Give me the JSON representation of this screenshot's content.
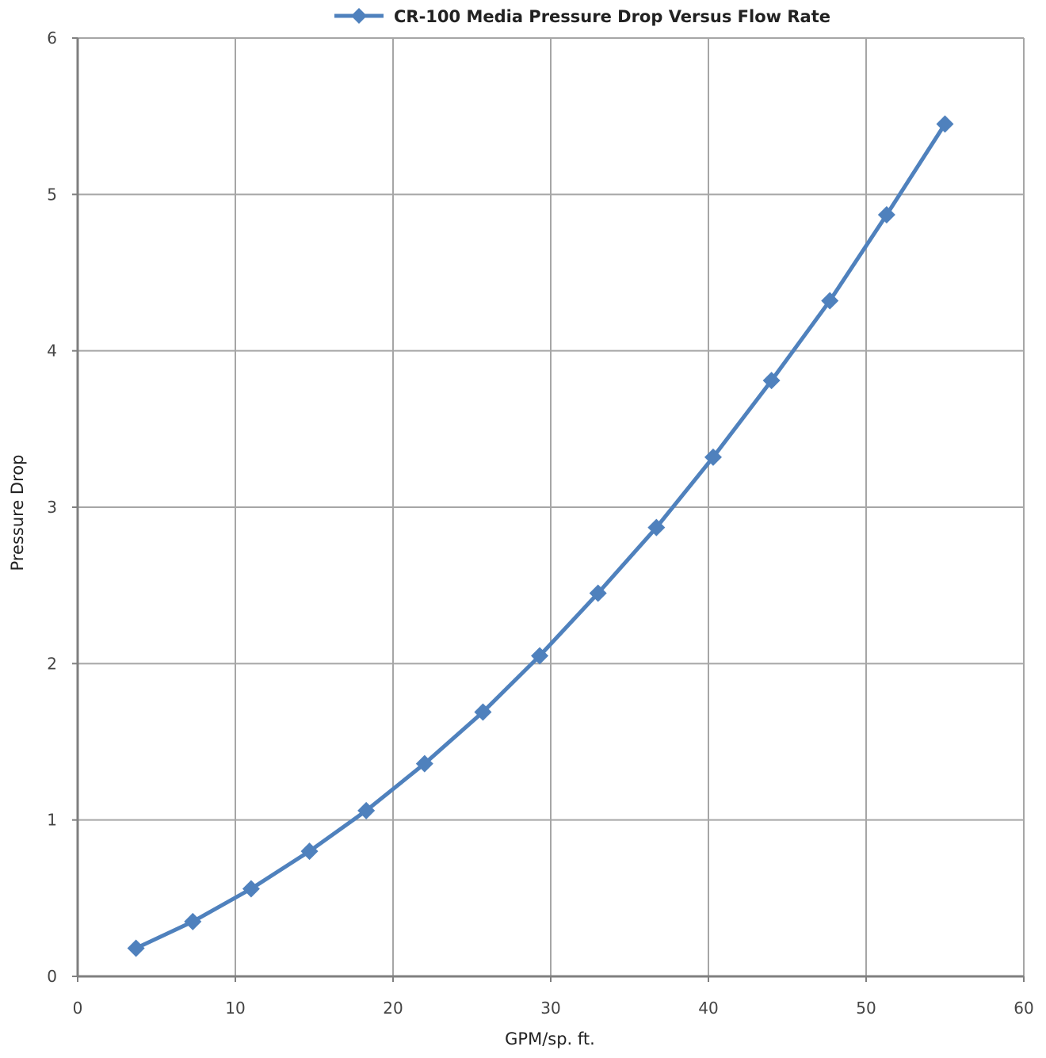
{
  "chart_data": {
    "type": "line",
    "title": "",
    "xlabel": "GPM/sp. ft.",
    "ylabel": "Pressure Drop",
    "xlim": [
      0,
      60
    ],
    "ylim": [
      0,
      6
    ],
    "xticks": [
      "0",
      "10",
      "20",
      "30",
      "40",
      "50",
      "60"
    ],
    "yticks": [
      "0",
      "1",
      "2",
      "3",
      "4",
      "5",
      "6"
    ],
    "grid": true,
    "legend_position": "top-center",
    "series": [
      {
        "name": "CR-100 Media Pressure Drop Versus Flow Rate",
        "color": "#4f81bd",
        "marker": "diamond",
        "x": [
          3.7,
          7.3,
          11.0,
          14.7,
          18.3,
          22.0,
          25.7,
          29.3,
          33.0,
          36.7,
          40.3,
          44.0,
          47.7,
          51.3,
          55.0
        ],
        "y": [
          0.18,
          0.35,
          0.56,
          0.8,
          1.06,
          1.36,
          1.69,
          2.05,
          2.45,
          2.87,
          3.32,
          3.81,
          4.32,
          4.87,
          5.45
        ]
      }
    ]
  }
}
